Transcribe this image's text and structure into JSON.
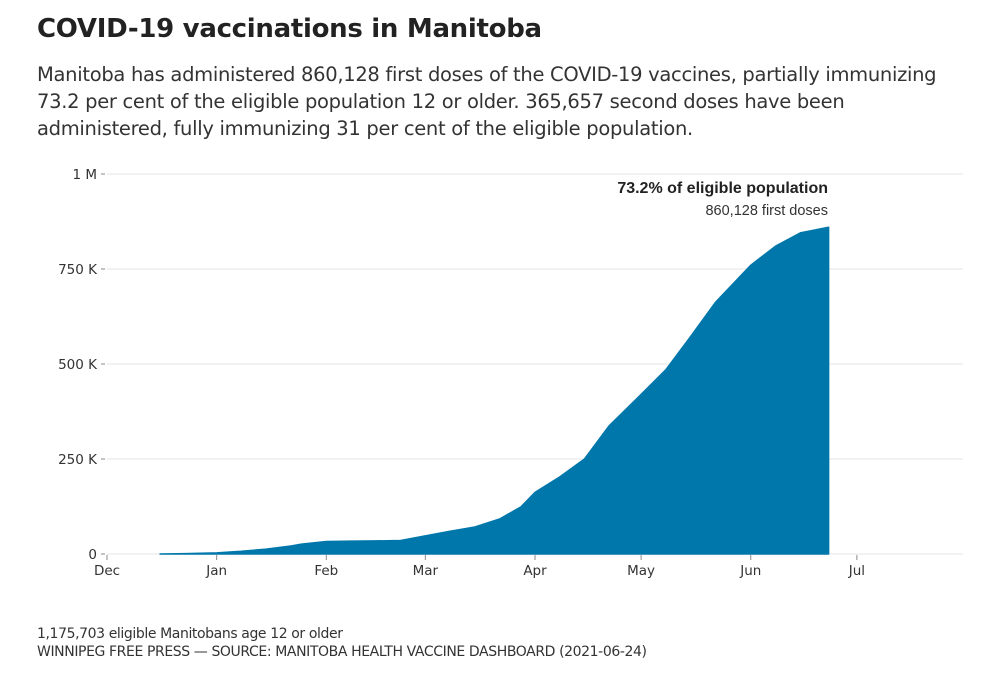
{
  "title": "COVID-19 vaccinations in Manitoba",
  "subtitle": "Manitoba has administered 860,128 first doses of the COVID-19 vaccines, partially immunizing 73.2 per cent of the eligible population 12 or older. 365,657 second doses have been administered, fully immunizing 31 per cent of the eligible population.",
  "footer": {
    "note": "1,175,703 eligible Manitobans age 12 or older",
    "source": "WINNIPEG FREE PRESS — SOURCE: MANITOBA HEALTH VACCINE DASHBOARD (2021-06-24)"
  },
  "chart_data": {
    "type": "area",
    "color": "#0077aa",
    "grid": true,
    "xlim": [
      "2020-12-01",
      "2021-07-31"
    ],
    "ylim": [
      0,
      1000000
    ],
    "x_ticks": [
      {
        "date": "2020-12-01",
        "label": "Dec"
      },
      {
        "date": "2021-01-01",
        "label": "Jan"
      },
      {
        "date": "2021-02-01",
        "label": "Feb"
      },
      {
        "date": "2021-03-01",
        "label": "Mar"
      },
      {
        "date": "2021-04-01",
        "label": "Apr"
      },
      {
        "date": "2021-05-01",
        "label": "May"
      },
      {
        "date": "2021-06-01",
        "label": "Jun"
      },
      {
        "date": "2021-07-01",
        "label": "Jul"
      }
    ],
    "y_ticks": [
      {
        "value": 0,
        "label": "0"
      },
      {
        "value": 250000,
        "label": "250 K"
      },
      {
        "value": 500000,
        "label": "500 K"
      },
      {
        "value": 750000,
        "label": "750 K"
      },
      {
        "value": 1000000,
        "label": "1 M"
      }
    ],
    "series": [
      {
        "x": [
          "2020-12-16",
          "2020-12-23",
          "2021-01-01",
          "2021-01-08",
          "2021-01-15",
          "2021-01-22",
          "2021-01-25",
          "2021-02-01",
          "2021-02-08",
          "2021-02-15",
          "2021-02-22",
          "2021-03-01",
          "2021-03-08",
          "2021-03-15",
          "2021-03-22",
          "2021-03-28",
          "2021-04-01",
          "2021-04-08",
          "2021-04-15",
          "2021-04-22",
          "2021-05-01",
          "2021-05-08",
          "2021-05-15",
          "2021-05-22",
          "2021-06-01",
          "2021-06-08",
          "2021-06-15",
          "2021-06-23"
        ],
        "y": [
          0,
          1000,
          3000,
          7000,
          13000,
          21000,
          26000,
          33000,
          34000,
          34500,
          35500,
          48000,
          60000,
          71000,
          92000,
          124000,
          162000,
          203000,
          250000,
          338000,
          420000,
          485000,
          572000,
          662000,
          760000,
          810000,
          845000,
          860128
        ]
      }
    ],
    "annotation": {
      "title": "73.2% of eligible population",
      "subtitle": "860,128 first doses"
    }
  }
}
